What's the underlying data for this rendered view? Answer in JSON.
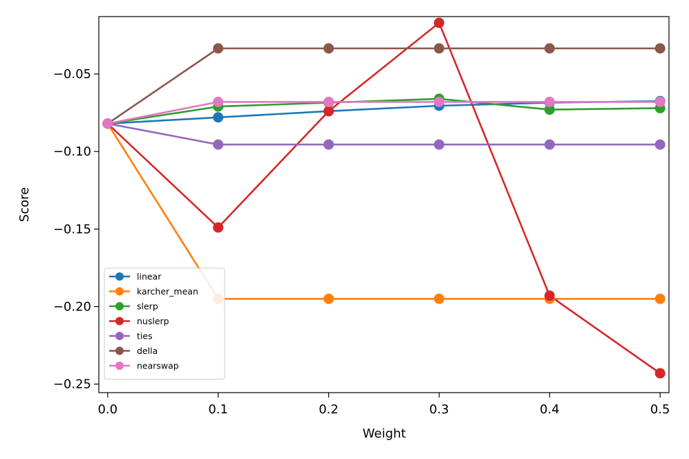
{
  "chart_data": {
    "type": "line",
    "title": "",
    "xlabel": "Weight",
    "ylabel": "Score",
    "x": [
      0.0,
      0.1,
      0.2,
      0.3,
      0.4,
      0.5
    ],
    "xlim": [
      -0.008,
      0.508
    ],
    "ylim": [
      -0.2555,
      -0.013
    ],
    "xticks": [
      0.0,
      0.1,
      0.2,
      0.3,
      0.4,
      0.5
    ],
    "xtick_labels": [
      "0.0",
      "0.1",
      "0.2",
      "0.3",
      "0.4",
      "0.5"
    ],
    "yticks": [
      -0.05,
      -0.1,
      -0.15,
      -0.2,
      -0.25
    ],
    "ytick_labels": [
      "−0.05",
      "−0.10",
      "−0.15",
      "−0.20",
      "−0.25"
    ],
    "grid": false,
    "legend_position": "lower-left",
    "series": [
      {
        "name": "linear",
        "color": "#1f77b4",
        "values": [
          -0.082,
          -0.078,
          -0.074,
          -0.0705,
          -0.0685,
          -0.0675
        ]
      },
      {
        "name": "karcher_mean",
        "color": "#ff7f0e",
        "values": [
          -0.082,
          -0.195,
          -0.195,
          -0.195,
          -0.195,
          -0.195
        ]
      },
      {
        "name": "slerp",
        "color": "#2ca02c",
        "values": [
          -0.082,
          -0.071,
          -0.0685,
          -0.066,
          -0.073,
          -0.072
        ]
      },
      {
        "name": "nuslerp",
        "color": "#d62728",
        "values": [
          -0.082,
          -0.149,
          -0.074,
          -0.017,
          -0.193,
          -0.243
        ]
      },
      {
        "name": "ties",
        "color": "#9467bd",
        "values": [
          -0.082,
          -0.0955,
          -0.0955,
          -0.0955,
          -0.0955,
          -0.0955
        ]
      },
      {
        "name": "della",
        "color": "#8c564b",
        "values": [
          -0.082,
          -0.0335,
          -0.0335,
          -0.0335,
          -0.0335,
          -0.0335
        ]
      },
      {
        "name": "nearswap",
        "color": "#e377c2",
        "values": [
          -0.082,
          -0.068,
          -0.068,
          -0.068,
          -0.068,
          -0.068
        ]
      }
    ]
  }
}
